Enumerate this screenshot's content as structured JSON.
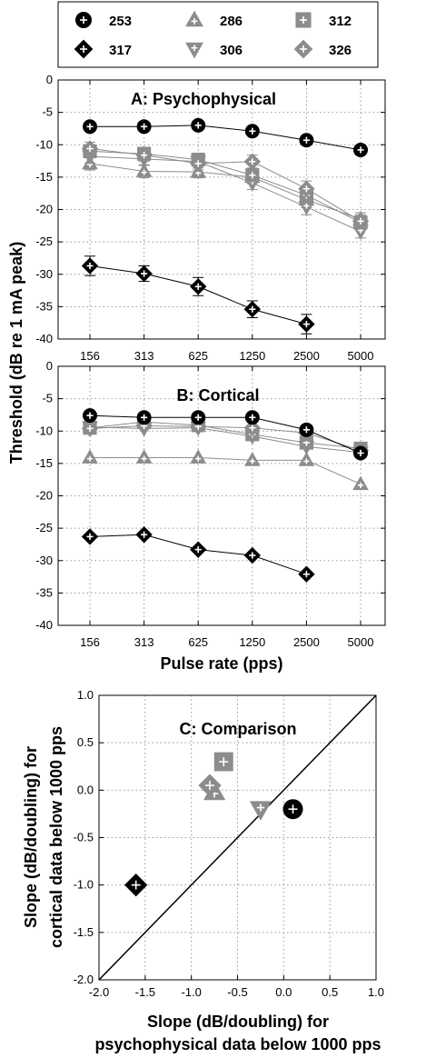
{
  "chart_data": [
    {
      "panel": "A",
      "type": "line",
      "title": "A: Psychophysical",
      "xlabel": "",
      "ylabel": "Threshold (dB re 1 mA peak)",
      "x_scale": "log2",
      "categories": [
        "156",
        "313",
        "625",
        "1250",
        "2500",
        "5000"
      ],
      "ylim": [
        -40,
        0
      ],
      "yticks": [
        0,
        -5,
        -10,
        -15,
        -20,
        -25,
        -30,
        -35,
        -40
      ],
      "grid": true,
      "series": [
        {
          "name": "253",
          "color": "#000000",
          "marker": "circle",
          "values": [
            -7.2,
            -7.2,
            -7.0,
            -7.9,
            -9.3,
            -10.8
          ],
          "err": [
            0.5,
            0.5,
            0.6,
            0.5,
            0.6,
            0.7
          ]
        },
        {
          "name": "317",
          "color": "#000000",
          "marker": "diamond",
          "values": [
            -28.7,
            -29.9,
            -31.9,
            -35.4,
            -37.7,
            null
          ],
          "err": [
            1.5,
            1.2,
            1.4,
            1.3,
            1.5,
            0
          ]
        },
        {
          "name": "286",
          "color": "#8c8c8c",
          "marker": "triangle-up",
          "values": [
            -12.9,
            -14.1,
            -14.2,
            -15.0,
            -18.5,
            -21.5
          ],
          "err": [
            1.0,
            1.0,
            0.9,
            1.0,
            1.2,
            1.0
          ]
        },
        {
          "name": "306",
          "color": "#8c8c8c",
          "marker": "triangle-down",
          "values": [
            -11.8,
            -12.2,
            -12.6,
            -15.9,
            -19.6,
            -23.4
          ],
          "err": [
            1.0,
            1.0,
            1.0,
            1.0,
            1.2,
            1.0
          ]
        },
        {
          "name": "312",
          "color": "#8c8c8c",
          "marker": "square",
          "values": [
            -11.0,
            -11.4,
            -12.3,
            -14.7,
            -17.8,
            -22.0
          ],
          "err": [
            1.0,
            1.0,
            1.0,
            1.0,
            1.2,
            1.0
          ]
        },
        {
          "name": "326",
          "color": "#8c8c8c",
          "marker": "diamond",
          "values": [
            -10.6,
            -11.6,
            -12.9,
            -12.6,
            -16.8,
            -21.8
          ],
          "err": [
            1.0,
            1.0,
            1.0,
            1.0,
            1.2,
            1.0
          ]
        }
      ]
    },
    {
      "panel": "B",
      "type": "line",
      "title": "B: Cortical",
      "xlabel": "Pulse rate (pps)",
      "ylabel": "Threshold (dB re 1 mA peak)",
      "x_scale": "log2",
      "categories": [
        "156",
        "313",
        "625",
        "1250",
        "2500",
        "5000"
      ],
      "ylim": [
        -40,
        0
      ],
      "yticks": [
        0,
        -5,
        -10,
        -15,
        -20,
        -25,
        -30,
        -35,
        -40
      ],
      "grid": true,
      "series": [
        {
          "name": "253",
          "color": "#000000",
          "marker": "circle",
          "values": [
            -7.6,
            -7.9,
            -7.9,
            -7.9,
            -9.8,
            -13.4
          ]
        },
        {
          "name": "317",
          "color": "#000000",
          "marker": "diamond",
          "values": [
            -26.3,
            -26.0,
            -28.3,
            -29.2,
            -32.1,
            null
          ]
        },
        {
          "name": "286",
          "color": "#8c8c8c",
          "marker": "triangle-up",
          "values": [
            -14.1,
            -14.1,
            -14.1,
            -14.5,
            -14.5,
            -18.2
          ]
        },
        {
          "name": "306",
          "color": "#8c8c8c",
          "marker": "triangle-down",
          "values": [
            -9.4,
            -9.6,
            -9.5,
            -10.8,
            -12.4,
            -13.3
          ]
        },
        {
          "name": "312",
          "color": "#8c8c8c",
          "marker": "square",
          "values": [
            -9.5,
            -8.6,
            -9.1,
            -10.5,
            -11.8,
            -12.7
          ]
        },
        {
          "name": "326",
          "color": "#8c8c8c",
          "marker": "diamond",
          "values": [
            -9.6,
            -9.2,
            -9.3,
            -9.5,
            -10.3,
            -13.0
          ]
        }
      ]
    },
    {
      "panel": "C",
      "type": "scatter",
      "title": "C: Comparison",
      "xlabel_lines": [
        "Slope (dB/doubling) for",
        "psychophysical data below 1000 pps"
      ],
      "ylabel_lines": [
        "Slope (dB/doubling) for",
        "cortical data below 1000 pps"
      ],
      "xlim": [
        -2.0,
        1.0
      ],
      "ylim": [
        -2.0,
        1.0
      ],
      "xticks": [
        "-2.0",
        "-1.5",
        "-1.0",
        "-0.5",
        "0.0",
        "0.5",
        "1.0"
      ],
      "yticks": [
        "1.0",
        "0.5",
        "0.0",
        "-0.5",
        "-1.0",
        "-1.5",
        "-2.0"
      ],
      "grid": true,
      "identity_line": true,
      "points": [
        {
          "name": "253",
          "color": "#000000",
          "marker": "circle",
          "x": 0.1,
          "y": -0.2
        },
        {
          "name": "317",
          "color": "#000000",
          "marker": "diamond",
          "x": -1.6,
          "y": -1.0
        },
        {
          "name": "286",
          "color": "#8c8c8c",
          "marker": "triangle-up",
          "x": -0.75,
          "y": -0.02
        },
        {
          "name": "306",
          "color": "#8c8c8c",
          "marker": "triangle-down",
          "x": -0.25,
          "y": -0.2
        },
        {
          "name": "312",
          "color": "#8c8c8c",
          "marker": "square",
          "x": -0.65,
          "y": 0.3
        },
        {
          "name": "326",
          "color": "#8c8c8c",
          "marker": "diamond",
          "x": -0.8,
          "y": 0.05
        }
      ]
    }
  ],
  "legend": {
    "placement": "top",
    "entries": [
      {
        "label": "253",
        "color": "#000000",
        "marker": "circle"
      },
      {
        "label": "286",
        "color": "#8c8c8c",
        "marker": "triangle-up"
      },
      {
        "label": "312",
        "color": "#8c8c8c",
        "marker": "square"
      },
      {
        "label": "317",
        "color": "#000000",
        "marker": "diamond"
      },
      {
        "label": "306",
        "color": "#8c8c8c",
        "marker": "triangle-down"
      },
      {
        "label": "326",
        "color": "#8c8c8c",
        "marker": "diamond"
      }
    ]
  },
  "shared_ylabel": "Threshold (dB re 1 mA peak)",
  "shared_xlabel": "Pulse rate (pps)"
}
